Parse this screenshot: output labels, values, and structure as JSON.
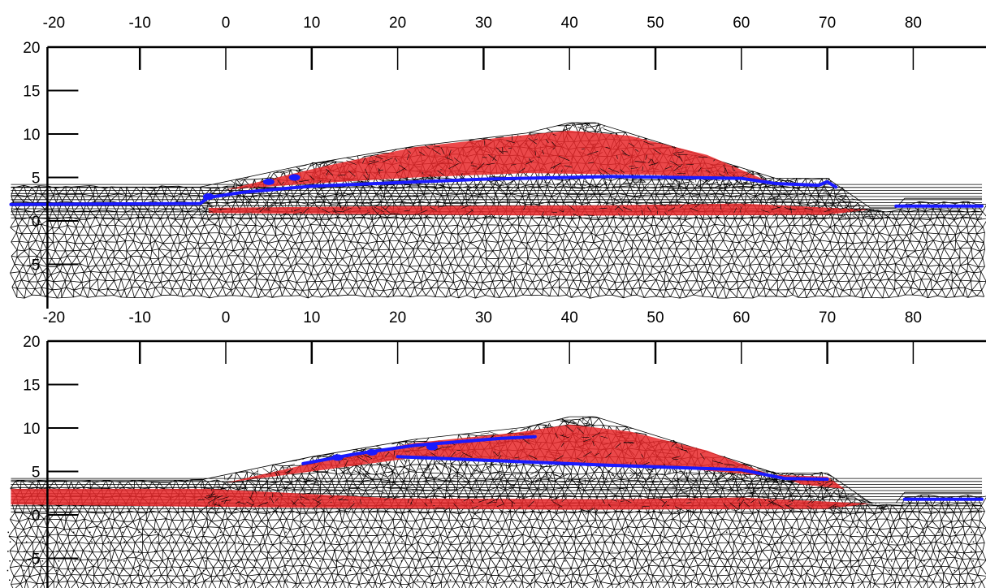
{
  "panels": [
    {
      "id": "top",
      "x_ticks": [
        "-20",
        "-10",
        "0",
        "10",
        "20",
        "30",
        "40",
        "50",
        "60",
        "70",
        "80"
      ],
      "y_ticks": [
        "20",
        "15",
        "10",
        "5",
        "0",
        "-5"
      ],
      "xlim": [
        -25,
        88
      ],
      "ylim": [
        -8,
        20
      ],
      "ground_profile": [
        [
          -25,
          3.9
        ],
        [
          -3,
          3.9
        ],
        [
          10,
          6.6
        ],
        [
          22,
          8.6
        ],
        [
          35,
          10.1
        ],
        [
          40,
          11.3
        ],
        [
          43,
          11.3
        ],
        [
          64,
          4.9
        ],
        [
          70,
          4.9
        ],
        [
          75,
          1.5
        ],
        [
          78,
          1.5
        ],
        [
          79,
          2.6
        ],
        [
          88,
          2.6
        ]
      ],
      "phreatic_line": [
        [
          -25,
          1.9
        ],
        [
          -3,
          2.0
        ],
        [
          -2,
          2.7
        ],
        [
          2,
          3.3
        ],
        [
          10,
          4.0
        ],
        [
          30,
          4.8
        ],
        [
          45,
          5.1
        ],
        [
          60,
          4.9
        ],
        [
          64,
          4.3
        ],
        [
          69,
          4.1
        ],
        [
          70,
          4.5
        ],
        [
          71,
          3.9
        ]
      ],
      "phreatic_line_right": [
        [
          78,
          1.7
        ],
        [
          88,
          1.7
        ]
      ],
      "blue_markers": [
        [
          5,
          4.5
        ],
        [
          8,
          5.0
        ],
        [
          -2,
          2.8
        ]
      ],
      "red_zones": [
        [
          [
            0,
            3.6
          ],
          [
            12,
            6.4
          ],
          [
            22,
            8.5
          ],
          [
            34,
            9.8
          ],
          [
            40,
            10.4
          ],
          [
            47,
            9.8
          ],
          [
            56,
            7.6
          ],
          [
            63,
            4.6
          ],
          [
            50,
            5.3
          ],
          [
            35,
            5.5
          ],
          [
            22,
            5.0
          ],
          [
            10,
            4.3
          ]
        ],
        [
          [
            -2,
            1.5
          ],
          [
            20,
            1.7
          ],
          [
            45,
            1.8
          ],
          [
            60,
            2.0
          ],
          [
            75,
            1.3
          ],
          [
            70,
            0.7
          ],
          [
            40,
            0.6
          ],
          [
            10,
            0.8
          ],
          [
            -2,
            0.9
          ]
        ]
      ],
      "mesh_density": "medium"
    },
    {
      "id": "bottom",
      "x_ticks": [
        "-20",
        "-10",
        "0",
        "10",
        "20",
        "30",
        "40",
        "50",
        "60",
        "70",
        "80"
      ],
      "y_ticks": [
        "20",
        "15",
        "10",
        "5",
        "0",
        "-5"
      ],
      "xlim": [
        -25,
        88
      ],
      "ylim": [
        -8,
        20
      ],
      "ground_profile": [
        [
          -25,
          4.0
        ],
        [
          -3,
          4.0
        ],
        [
          10,
          6.7
        ],
        [
          22,
          8.7
        ],
        [
          35,
          10.1
        ],
        [
          40,
          11.3
        ],
        [
          43,
          11.3
        ],
        [
          64,
          4.8
        ],
        [
          70,
          4.8
        ],
        [
          75,
          1.4
        ],
        [
          78,
          1.4
        ],
        [
          79,
          2.6
        ],
        [
          88,
          2.6
        ]
      ],
      "phreatic_line": [
        [
          9,
          5.9
        ],
        [
          15,
          7.0
        ],
        [
          22,
          8.0
        ],
        [
          32,
          8.8
        ],
        [
          36,
          9.0
        ]
      ],
      "phreatic_line_2": [
        [
          20,
          6.7
        ],
        [
          30,
          6.3
        ],
        [
          45,
          5.7
        ],
        [
          60,
          5.2
        ],
        [
          65,
          4.2
        ],
        [
          70,
          4.1
        ]
      ],
      "phreatic_line_right": [
        [
          79,
          1.8
        ],
        [
          88,
          1.8
        ]
      ],
      "blue_markers": [
        [
          13,
          6.6
        ],
        [
          17,
          7.2
        ],
        [
          24,
          7.8
        ]
      ],
      "red_zones": [
        [
          [
            0,
            3.7
          ],
          [
            12,
            6.4
          ],
          [
            22,
            8.3
          ],
          [
            34,
            9.5
          ],
          [
            40,
            10.4
          ],
          [
            47,
            9.6
          ],
          [
            56,
            7.4
          ],
          [
            64,
            4.4
          ],
          [
            50,
            5.6
          ],
          [
            35,
            6.3
          ],
          [
            22,
            6.6
          ],
          [
            10,
            5.0
          ]
        ],
        [
          [
            -25,
            3.0
          ],
          [
            -2,
            3.0
          ],
          [
            20,
            1.9
          ],
          [
            45,
            1.8
          ],
          [
            60,
            2.0
          ],
          [
            75,
            1.3
          ],
          [
            70,
            0.7
          ],
          [
            40,
            0.6
          ],
          [
            10,
            0.8
          ],
          [
            -25,
            1.2
          ]
        ],
        [
          [
            64,
            4.6
          ],
          [
            70,
            4.4
          ],
          [
            72,
            3.0
          ],
          [
            67,
            3.5
          ]
        ]
      ],
      "mesh_density": "medium",
      "dotted_points": true
    }
  ],
  "colors": {
    "mesh": "#000000",
    "phreatic": "#1a1aff",
    "plastic_zone": "#e8282a",
    "background": "#ffffff"
  }
}
